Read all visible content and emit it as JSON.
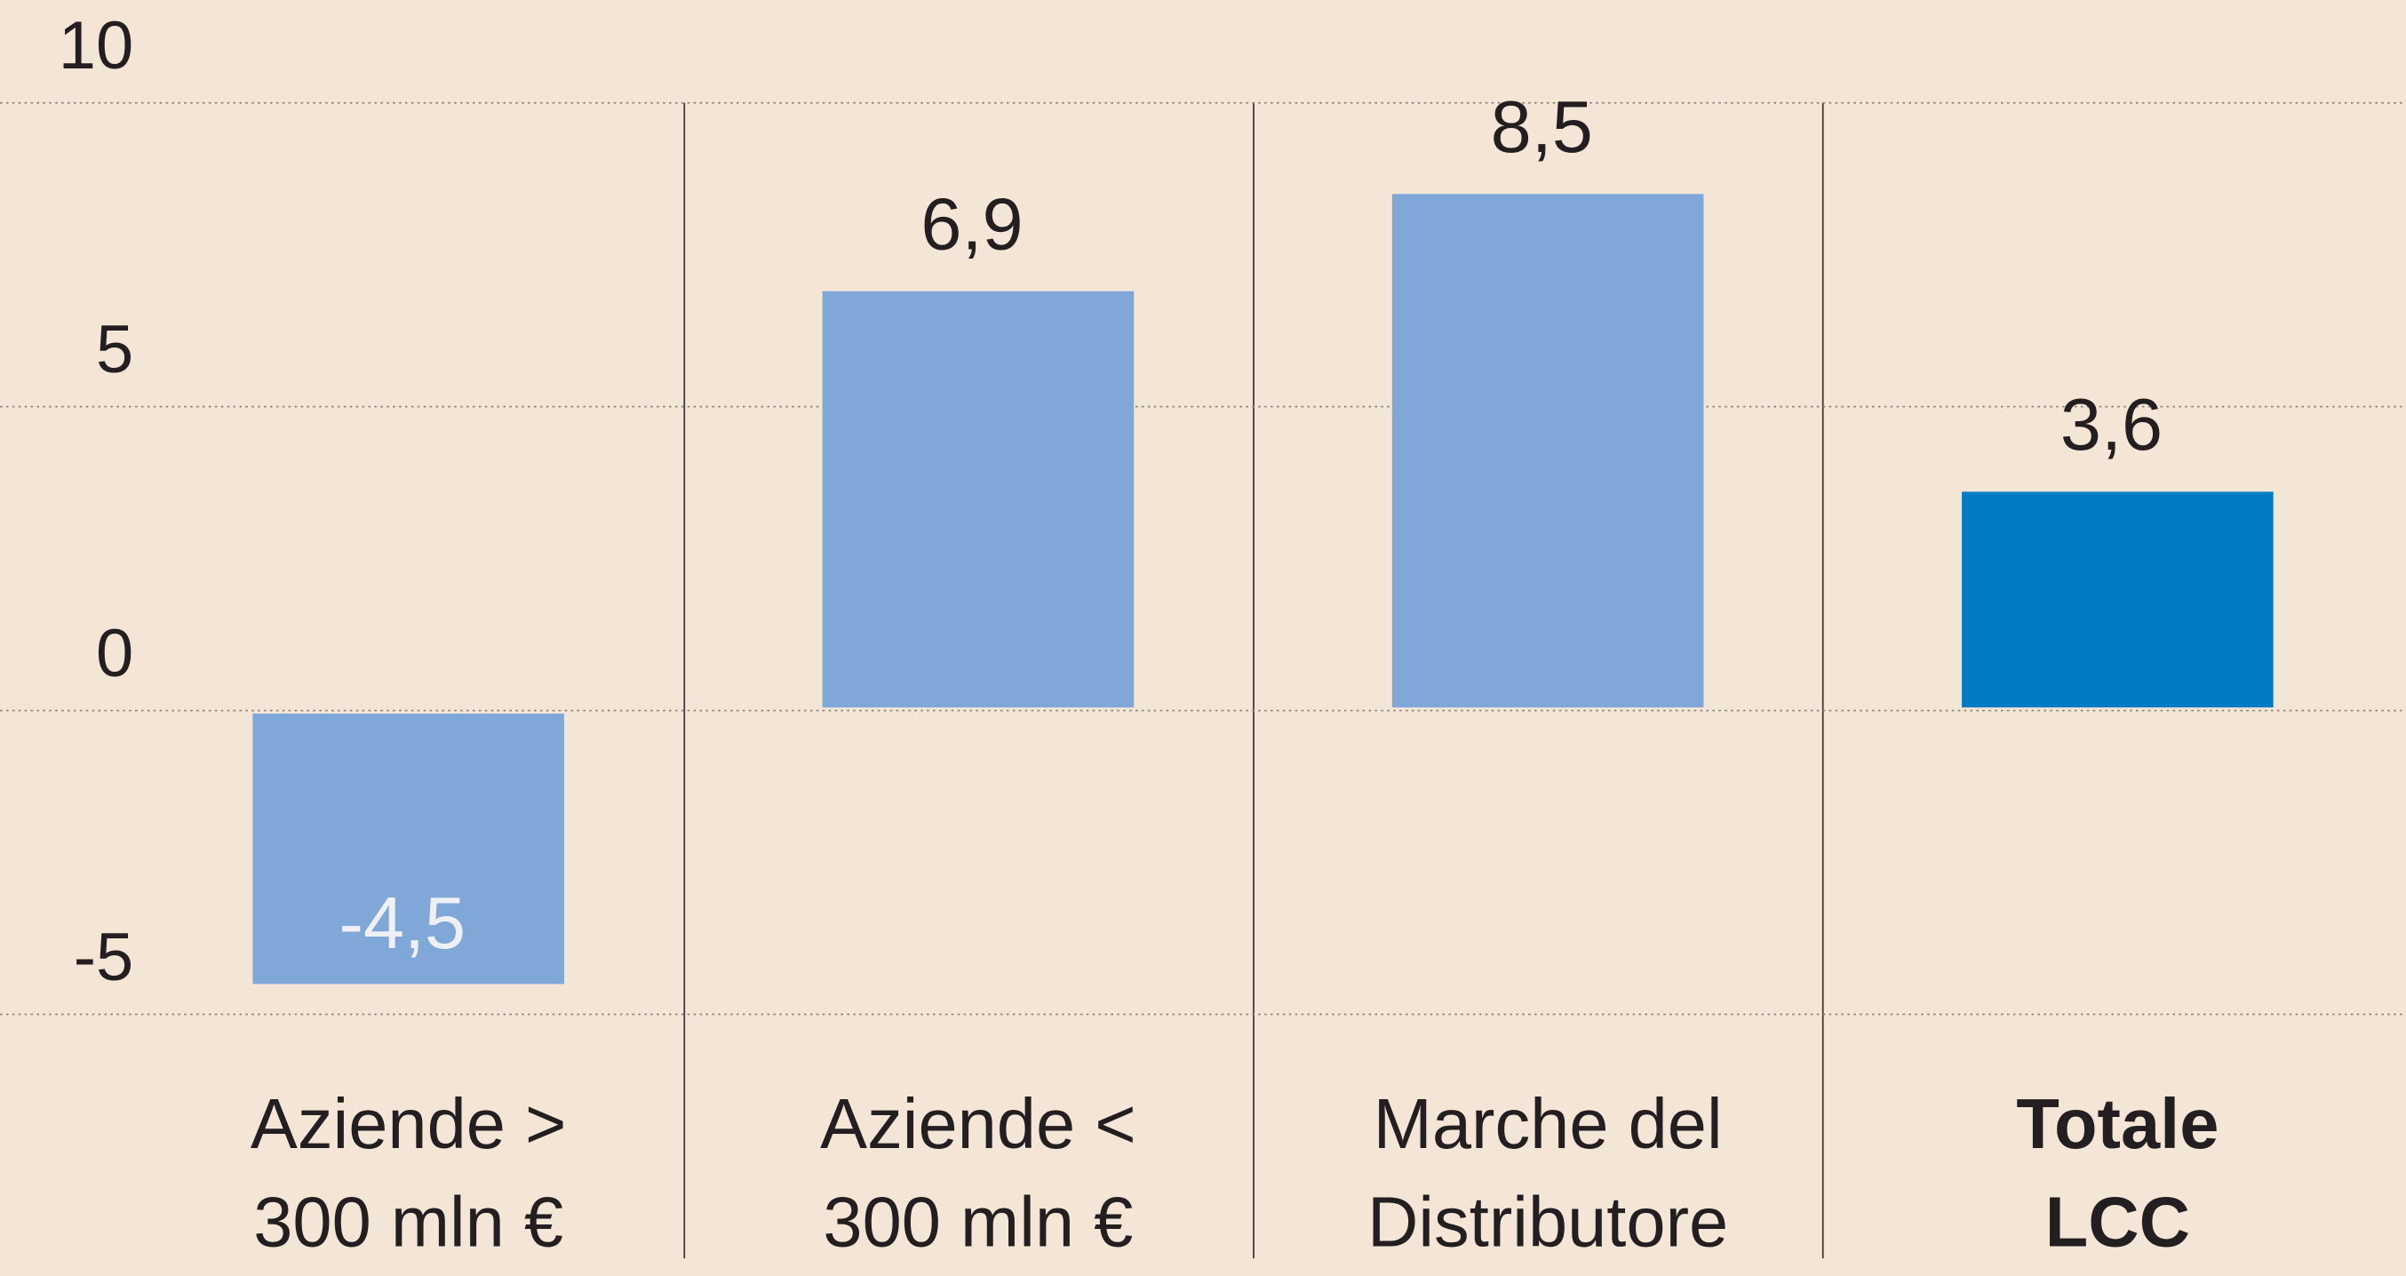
{
  "chart_data": {
    "type": "bar",
    "categories": [
      "Aziende >\n300 mln €",
      "Aziende <\n300 mln €",
      "Marche del\nDistributore",
      "Totale\nLCC"
    ],
    "values": [
      -4.5,
      6.9,
      8.5,
      3.6
    ],
    "value_labels": [
      "-4,5",
      "6,9",
      "8,5",
      "3,6"
    ],
    "colors": [
      "#7fa8d9",
      "#7fa8d9",
      "#7fa8d9",
      "#007bc4"
    ],
    "bold_category": 3,
    "ylim": [
      -5,
      10
    ],
    "yticks": [
      -5,
      0,
      5,
      10
    ],
    "grid": true
  }
}
